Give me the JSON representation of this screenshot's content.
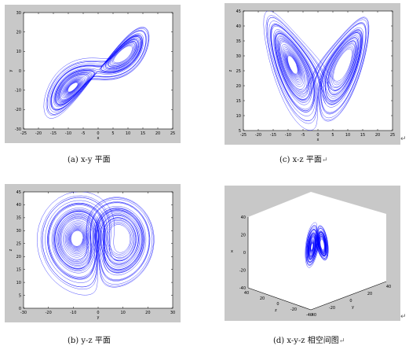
{
  "chart_data": [
    {
      "id": "a",
      "type": "line",
      "title": "",
      "xlabel": "x",
      "ylabel": "y",
      "xlim": [
        -25,
        25
      ],
      "ylim": [
        -30,
        30
      ],
      "xticks": [
        -25,
        -20,
        -15,
        -10,
        -5,
        0,
        5,
        10,
        15,
        20,
        25
      ],
      "yticks": [
        -30,
        -20,
        -10,
        0,
        10,
        20,
        30
      ],
      "series": [
        {
          "vars": [
            "x",
            "y"
          ],
          "color": "#0000ff"
        }
      ],
      "caption": "(a) x-y 平面"
    },
    {
      "id": "c",
      "type": "line",
      "title": "",
      "xlabel": "x",
      "ylabel": "z",
      "xlim": [
        -25,
        25
      ],
      "ylim": [
        5,
        45
      ],
      "xticks": [
        -25,
        -20,
        -15,
        -10,
        -5,
        0,
        5,
        10,
        15,
        20,
        25
      ],
      "yticks": [
        5,
        10,
        15,
        20,
        25,
        30,
        35,
        40,
        45
      ],
      "series": [
        {
          "vars": [
            "x",
            "z"
          ],
          "color": "#0000ff"
        }
      ],
      "caption": "(c) x-z 平面"
    },
    {
      "id": "b",
      "type": "line",
      "title": "",
      "xlabel": "y",
      "ylabel": "z",
      "xlim": [
        -30,
        30
      ],
      "ylim": [
        0,
        45
      ],
      "xticks": [
        -30,
        -20,
        -10,
        0,
        10,
        20,
        30
      ],
      "yticks": [
        0,
        5,
        10,
        15,
        20,
        25,
        30,
        35,
        40,
        45
      ],
      "series": [
        {
          "vars": [
            "y",
            "z"
          ],
          "color": "#0000ff"
        }
      ],
      "caption": "(b) y-z 平面"
    },
    {
      "id": "d",
      "type": "line",
      "title": "",
      "xlabel": "x",
      "ylabel": "y",
      "zlabel": "z",
      "xticks": [
        -40,
        -20,
        0,
        20,
        40
      ],
      "yticks": [
        -40,
        -20,
        0,
        20,
        40
      ],
      "zticks": [
        -40,
        -20,
        0,
        20,
        40
      ],
      "series": [
        {
          "vars": [
            "x",
            "y",
            "z"
          ],
          "color": "#0000ff"
        }
      ],
      "caption": "(d) x-y-z 相空间图"
    }
  ],
  "return_mark": "↵"
}
